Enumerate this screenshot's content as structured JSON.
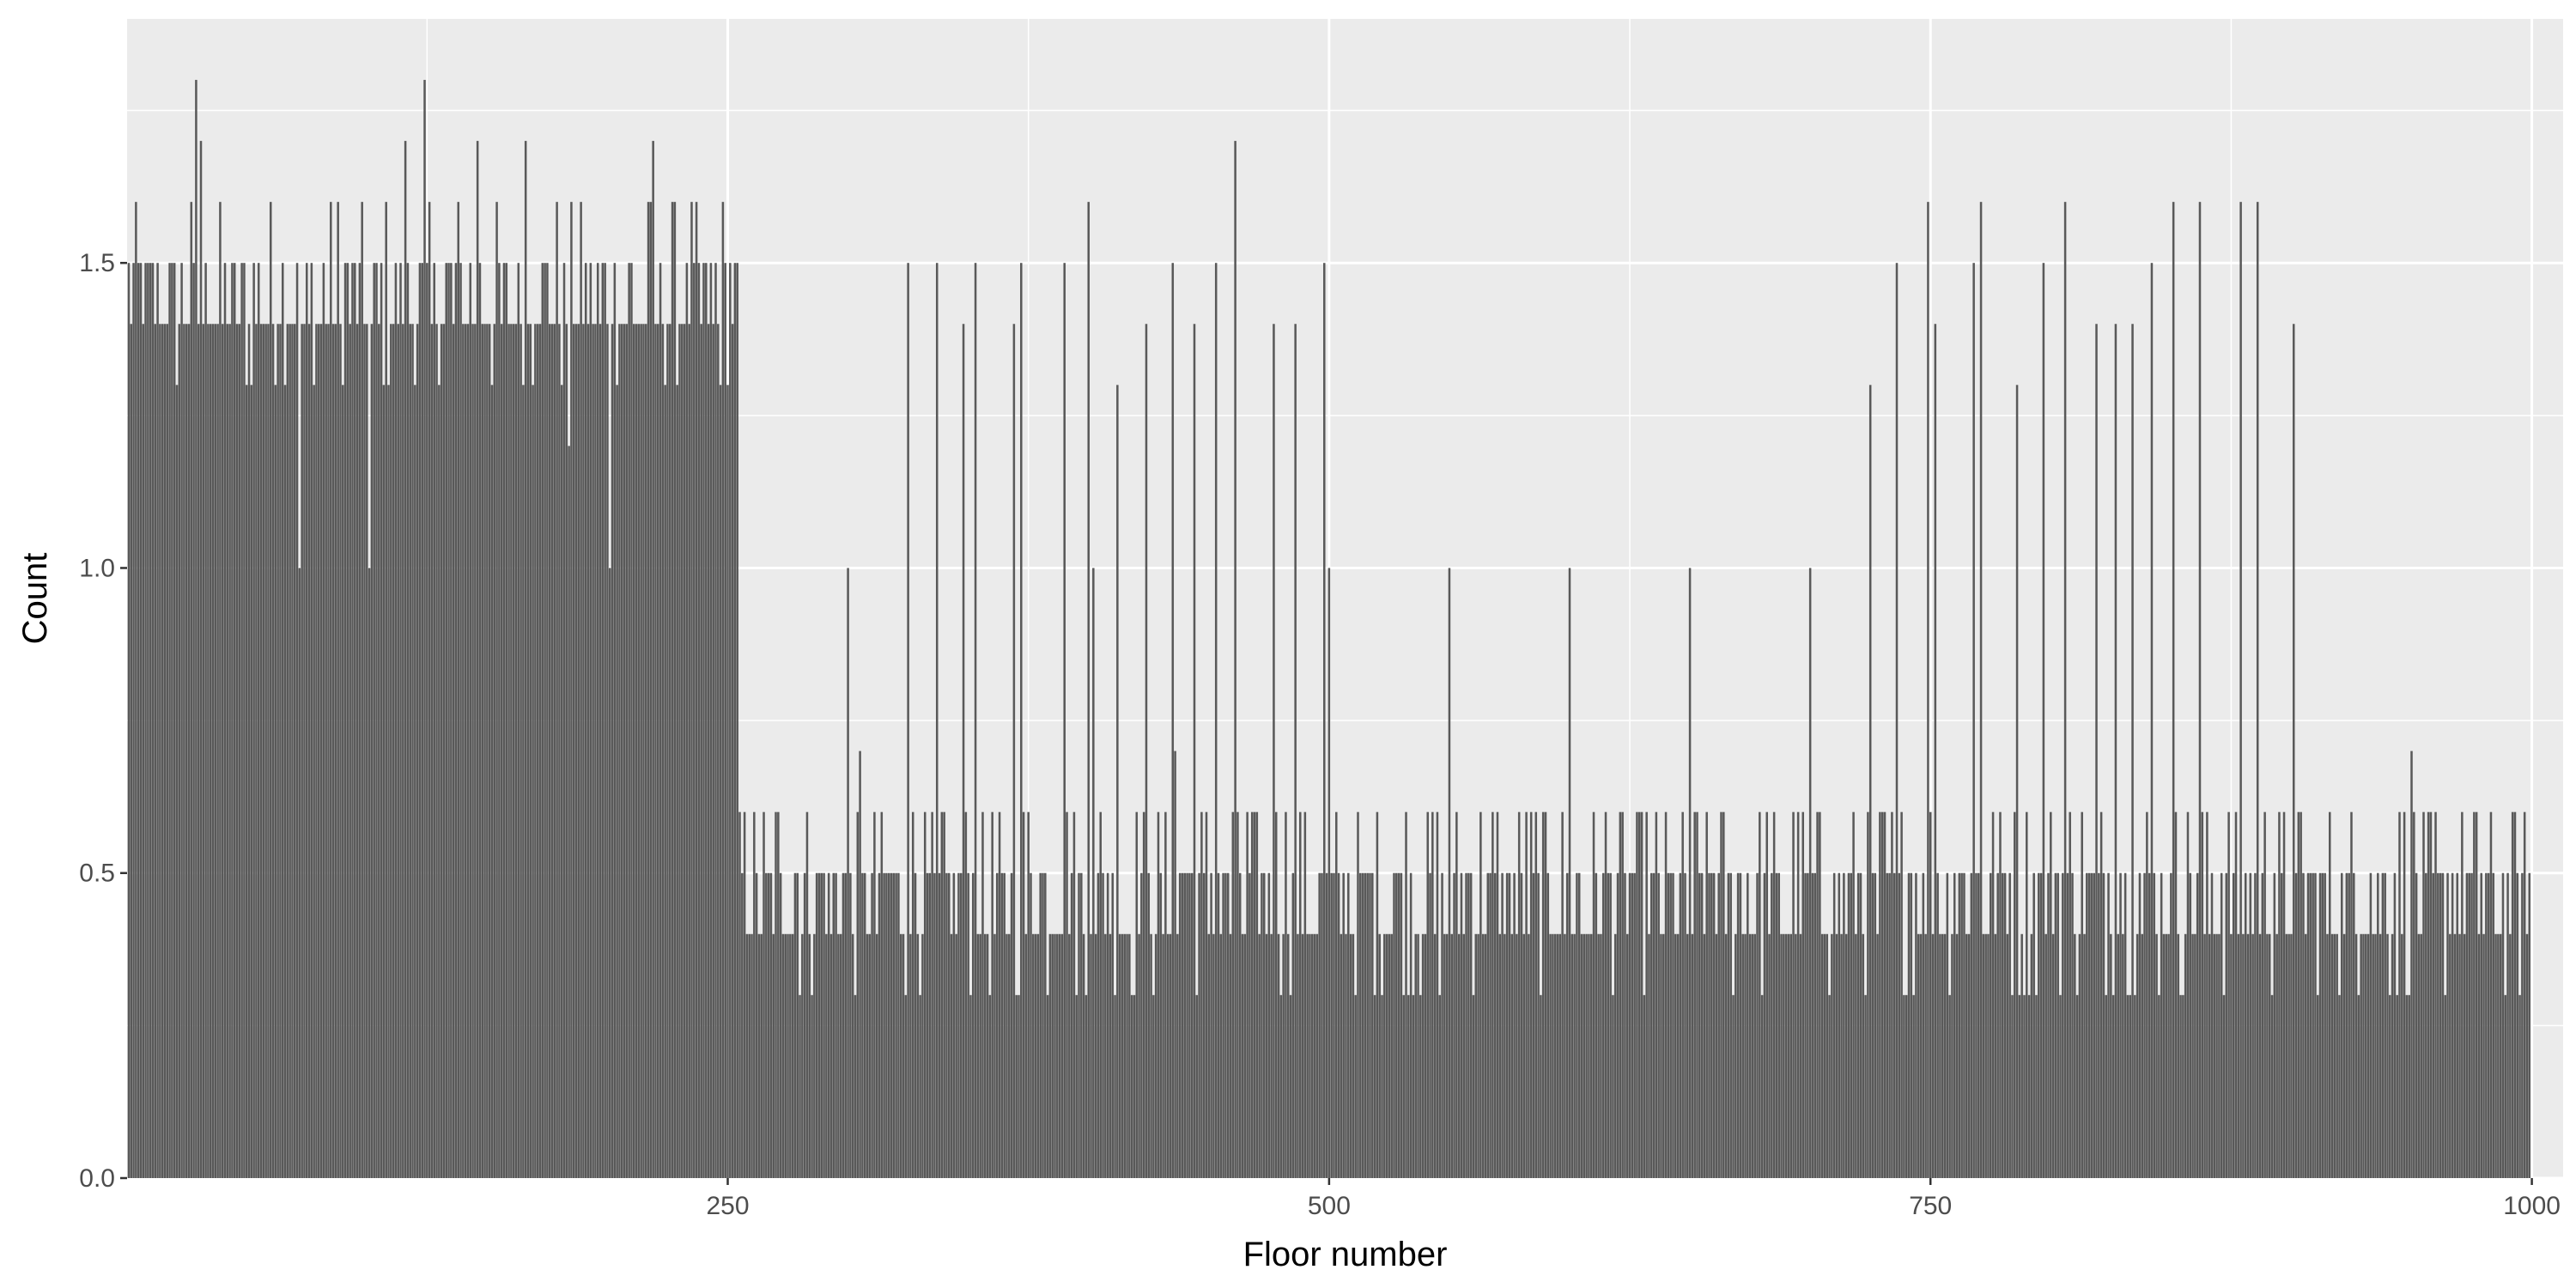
{
  "chart_data": {
    "type": "bar",
    "title": "",
    "xlabel": "Floor number",
    "ylabel": "Count",
    "xlim": [
      1,
      1000
    ],
    "ylim": [
      0,
      1.9
    ],
    "x_ticks": [
      250,
      500,
      750,
      1000
    ],
    "y_ticks": [
      0.0,
      0.5,
      1.0,
      1.5
    ],
    "y_tick_labels": [
      "0.0",
      "0.5",
      "1.0",
      "1.5"
    ],
    "grid": true,
    "legend": "none",
    "bar_color": "#595959",
    "panel_color": "#ebebeb",
    "segments": [
      {
        "from": 1,
        "to": 254,
        "value_range": [
          1.3,
          1.6
        ],
        "typical": 1.4
      },
      {
        "from": 255,
        "to": 999,
        "value_range": [
          0.3,
          0.6
        ],
        "typical": 0.5
      }
    ],
    "notable_bars": [
      {
        "x": 29,
        "value": 1.8
      },
      {
        "x": 31,
        "value": 1.7
      },
      {
        "x": 72,
        "value": 1.0
      },
      {
        "x": 101,
        "value": 1.0
      },
      {
        "x": 116,
        "value": 1.7
      },
      {
        "x": 124,
        "value": 1.8
      },
      {
        "x": 146,
        "value": 1.7
      },
      {
        "x": 166,
        "value": 1.7
      },
      {
        "x": 184,
        "value": 1.2
      },
      {
        "x": 201,
        "value": 1.0
      },
      {
        "x": 219,
        "value": 1.7
      },
      {
        "x": 300,
        "value": 1.0
      },
      {
        "x": 305,
        "value": 0.7
      },
      {
        "x": 325,
        "value": 1.5
      },
      {
        "x": 337,
        "value": 1.5
      },
      {
        "x": 348,
        "value": 1.4
      },
      {
        "x": 353,
        "value": 1.5
      },
      {
        "x": 369,
        "value": 1.4
      },
      {
        "x": 372,
        "value": 1.5
      },
      {
        "x": 390,
        "value": 1.5
      },
      {
        "x": 400,
        "value": 1.6
      },
      {
        "x": 402,
        "value": 1.0
      },
      {
        "x": 412,
        "value": 1.3
      },
      {
        "x": 424,
        "value": 1.4
      },
      {
        "x": 435,
        "value": 1.5
      },
      {
        "x": 436,
        "value": 0.7
      },
      {
        "x": 444,
        "value": 1.4
      },
      {
        "x": 453,
        "value": 1.5
      },
      {
        "x": 461,
        "value": 1.7
      },
      {
        "x": 477,
        "value": 1.4
      },
      {
        "x": 486,
        "value": 1.4
      },
      {
        "x": 498,
        "value": 1.5
      },
      {
        "x": 500,
        "value": 1.0
      },
      {
        "x": 550,
        "value": 1.0
      },
      {
        "x": 600,
        "value": 1.0
      },
      {
        "x": 650,
        "value": 1.0
      },
      {
        "x": 700,
        "value": 1.0
      },
      {
        "x": 725,
        "value": 1.3
      },
      {
        "x": 736,
        "value": 1.5
      },
      {
        "x": 749,
        "value": 1.6
      },
      {
        "x": 752,
        "value": 1.4
      },
      {
        "x": 768,
        "value": 1.5
      },
      {
        "x": 771,
        "value": 1.6
      },
      {
        "x": 786,
        "value": 1.3
      },
      {
        "x": 797,
        "value": 1.5
      },
      {
        "x": 806,
        "value": 1.6
      },
      {
        "x": 819,
        "value": 1.4
      },
      {
        "x": 827,
        "value": 1.4
      },
      {
        "x": 834,
        "value": 1.4
      },
      {
        "x": 842,
        "value": 1.5
      },
      {
        "x": 851,
        "value": 1.6
      },
      {
        "x": 862,
        "value": 1.6
      },
      {
        "x": 879,
        "value": 1.6
      },
      {
        "x": 886,
        "value": 1.6
      },
      {
        "x": 901,
        "value": 1.4
      },
      {
        "x": 950,
        "value": 0.7
      }
    ]
  }
}
